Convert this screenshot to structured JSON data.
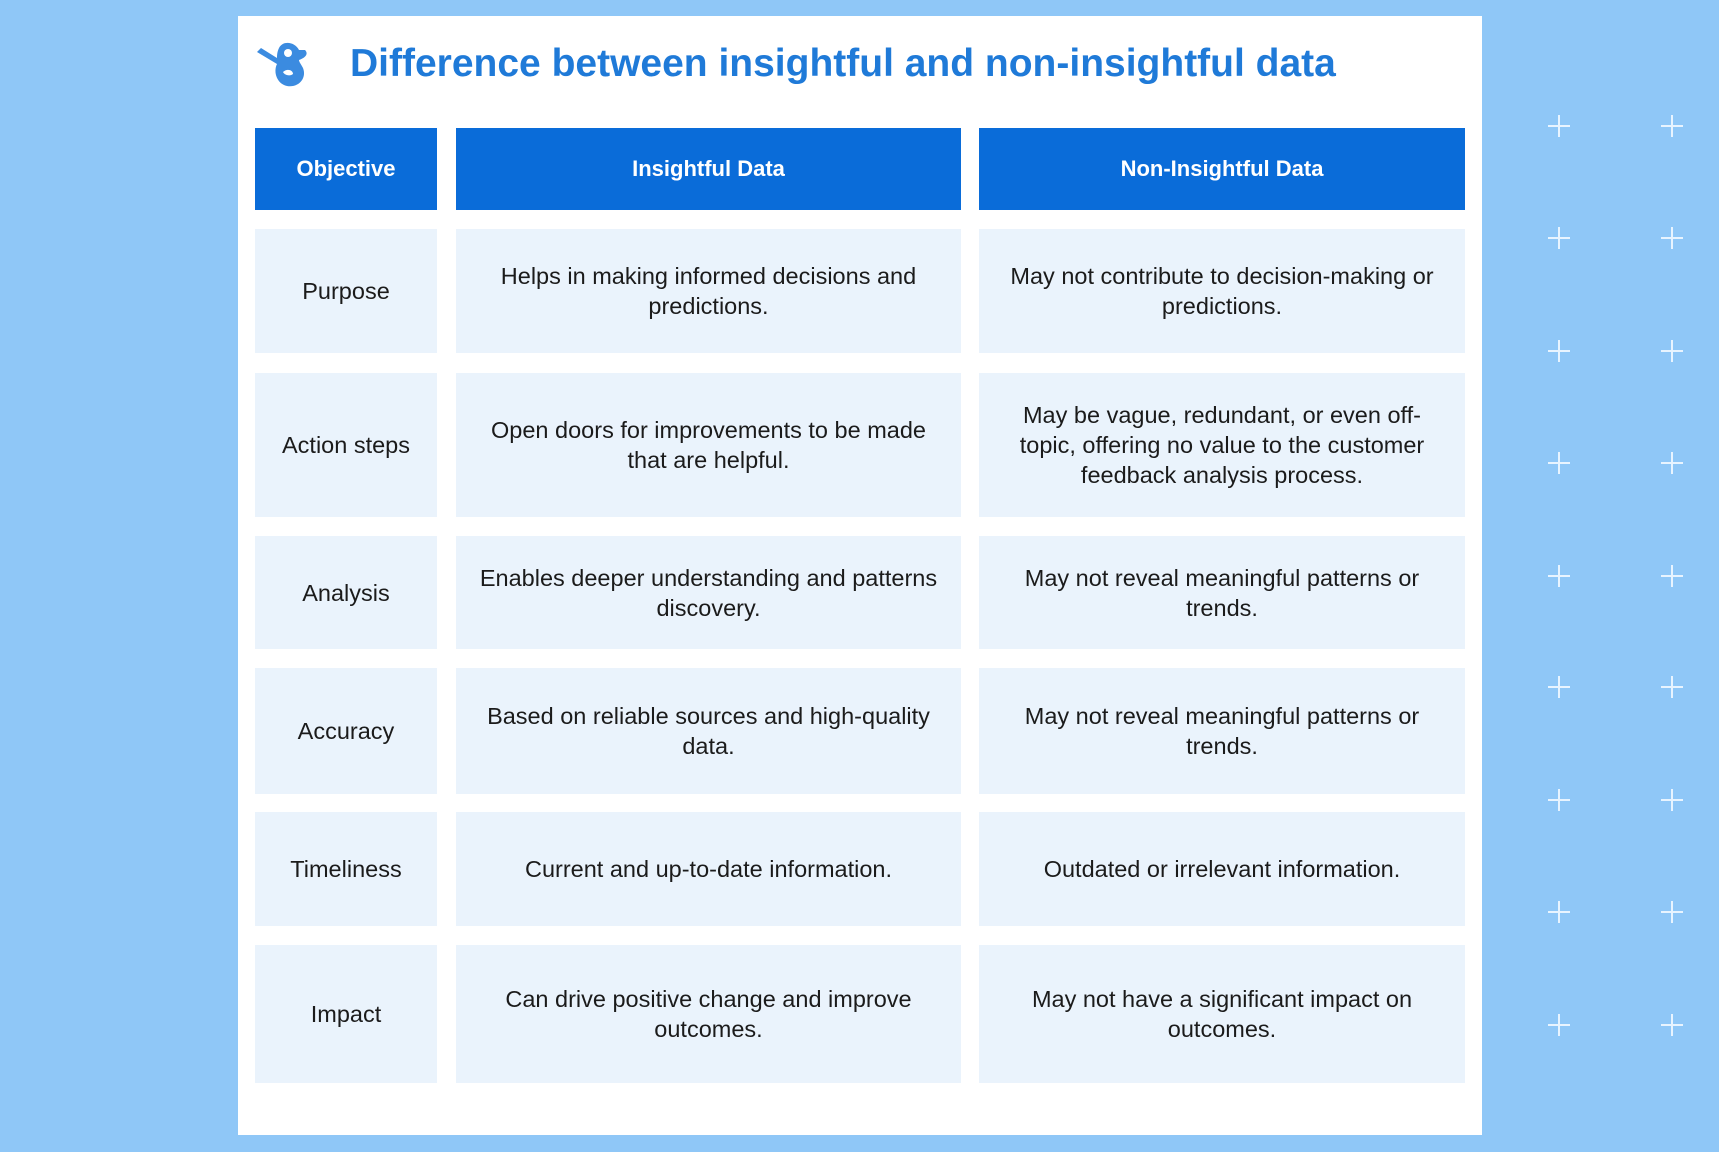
{
  "title": "Difference between insightful and non-insightful data",
  "logo": "bird-logo-icon",
  "colors": {
    "background": "#8fc7f7",
    "header": "#0a6cd9",
    "cell": "#eaf3fc",
    "title": "#1f7ad8"
  },
  "headers": [
    "Objective",
    "Insightful Data",
    "Non-Insightful Data"
  ],
  "rows": [
    [
      "Purpose",
      "Helps in making informed decisions and predictions.",
      "May not contribute to decision-making or predictions."
    ],
    [
      "Action steps",
      "Open doors for improvements to be made that are helpful.",
      "May be vague, redundant, or even off-topic, offering no value to the customer feedback analysis process."
    ],
    [
      "Analysis",
      "Enables deeper understanding and patterns discovery.",
      "May not reveal meaningful patterns or trends."
    ],
    [
      "Accuracy",
      "Based on reliable sources and high-quality data.",
      "May not reveal meaningful patterns or trends."
    ],
    [
      "Timeliness",
      "Current and up-to-date information.",
      "Outdated or irrelevant information."
    ],
    [
      "Impact",
      "Can drive positive change and improve outcomes.",
      "May not have a significant impact on outcomes."
    ]
  ]
}
